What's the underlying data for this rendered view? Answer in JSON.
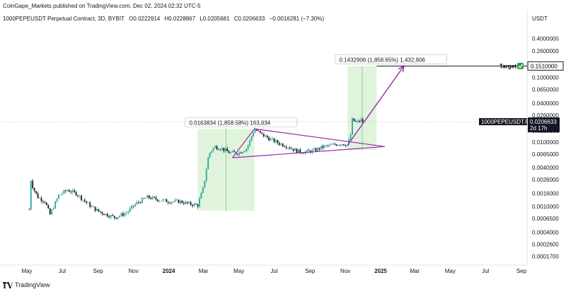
{
  "header": {
    "publisher": "CoinGape_Markets published on TradingView.com, Dec 02, 2024 02:32 UTC-5",
    "symbol": "1000PEPEUSDT Perpetual Contract, 3D, BYBIT",
    "open": "O0.0222914",
    "high": "H0.0228867",
    "low": "L0.0205681",
    "close": "C0.0206633",
    "change": "−0.0016281 (−7.30%)"
  },
  "footer": {
    "brand": "TradingView"
  },
  "chart_data": {
    "type": "candlestick",
    "y_scale": "log",
    "unit": "USDT",
    "ylim": [
      0.00014,
      0.58
    ],
    "y_ticks": [
      "0.4000000",
      "0.2600000",
      "0.1510000",
      "0.1000000",
      "0.0650000",
      "0.0400000",
      "0.0260000",
      "0.0150000",
      "0.0100000",
      "0.0065000",
      "0.0040000",
      "0.0026000",
      "0.0016000",
      "0.0010000",
      "0.0006500",
      "0.0004000",
      "0.0002600",
      "0.0001700"
    ],
    "x_ticks": [
      {
        "label": "May",
        "date": "2023-05-01"
      },
      {
        "label": "Jul",
        "date": "2023-07-01"
      },
      {
        "label": "Sep",
        "date": "2023-09-01"
      },
      {
        "label": "Nov",
        "date": "2023-11-01"
      },
      {
        "label": "2024",
        "date": "2024-01-01",
        "bold": true
      },
      {
        "label": "Mar",
        "date": "2024-03-01"
      },
      {
        "label": "May",
        "date": "2024-05-01"
      },
      {
        "label": "Jul",
        "date": "2024-07-01"
      },
      {
        "label": "Sep",
        "date": "2024-09-01"
      },
      {
        "label": "Nov",
        "date": "2024-11-01"
      },
      {
        "label": "2025",
        "date": "2025-01-01",
        "bold": true
      },
      {
        "label": "Mar",
        "date": "2025-03-01"
      },
      {
        "label": "May",
        "date": "2025-05-01"
      },
      {
        "label": "Jul",
        "date": "2025-07-01"
      },
      {
        "label": "Sep",
        "date": "2025-09-01"
      }
    ],
    "price_path": [
      [
        "2023-05-05",
        0.0009
      ],
      [
        "2023-05-07",
        0.0028
      ],
      [
        "2023-05-12",
        0.0019
      ],
      [
        "2023-05-20",
        0.0014
      ],
      [
        "2023-06-01",
        0.0012
      ],
      [
        "2023-06-10",
        0.00075
      ],
      [
        "2023-06-25",
        0.0015
      ],
      [
        "2023-07-10",
        0.0018
      ],
      [
        "2023-07-25",
        0.0016
      ],
      [
        "2023-08-05",
        0.0013
      ],
      [
        "2023-08-20",
        0.001
      ],
      [
        "2023-09-01",
        0.00085
      ],
      [
        "2023-09-15",
        0.00075
      ],
      [
        "2023-10-01",
        0.00068
      ],
      [
        "2023-10-20",
        0.0008
      ],
      [
        "2023-11-05",
        0.0011
      ],
      [
        "2023-11-25",
        0.0014
      ],
      [
        "2023-12-10",
        0.0013
      ],
      [
        "2024-01-01",
        0.0012
      ],
      [
        "2024-01-20",
        0.0012
      ],
      [
        "2024-02-05",
        0.0011
      ],
      [
        "2024-02-20",
        0.00105
      ],
      [
        "2024-03-01",
        0.002
      ],
      [
        "2024-03-10",
        0.0065
      ],
      [
        "2024-03-20",
        0.0085
      ],
      [
        "2024-04-01",
        0.008
      ],
      [
        "2024-04-15",
        0.0068
      ],
      [
        "2024-05-01",
        0.0068
      ],
      [
        "2024-05-15",
        0.008
      ],
      [
        "2024-05-28",
        0.016
      ],
      [
        "2024-06-10",
        0.013
      ],
      [
        "2024-06-25",
        0.011
      ],
      [
        "2024-07-10",
        0.0095
      ],
      [
        "2024-07-25",
        0.0085
      ],
      [
        "2024-08-10",
        0.0072
      ],
      [
        "2024-08-25",
        0.007
      ],
      [
        "2024-09-10",
        0.0075
      ],
      [
        "2024-09-25",
        0.0085
      ],
      [
        "2024-10-10",
        0.009
      ],
      [
        "2024-10-25",
        0.0095
      ],
      [
        "2024-11-05",
        0.009
      ],
      [
        "2024-11-10",
        0.013
      ],
      [
        "2024-11-13",
        0.022
      ],
      [
        "2024-11-20",
        0.02
      ],
      [
        "2024-11-28",
        0.0218
      ],
      [
        "2024-12-02",
        0.0206633
      ]
    ],
    "annotations": [
      {
        "text": "0.0163834 (1,858.58%) 163,834",
        "x0": "2024-02-20",
        "x1": "2024-05-28",
        "y0": 0.00086,
        "y1": 0.016
      },
      {
        "text": "0.1432906 (1,858.65%) 1,432,906",
        "x0": "2024-11-05",
        "x1": "2024-12-25",
        "y0": 0.0075,
        "y1": 0.151
      }
    ],
    "triangle": {
      "apex": [
        "2025-01-08",
        0.0085
      ],
      "upper_start": [
        "2024-05-28",
        0.016
      ],
      "lower_start": [
        "2024-04-20",
        0.0057
      ]
    },
    "projection": {
      "from": [
        "2024-11-05",
        0.009
      ],
      "to": [
        "2025-02-10",
        0.151
      ]
    },
    "target": {
      "label": "Target",
      "value": "0.1510000",
      "y": 0.151,
      "x_from": "2024-12-25"
    },
    "last_price": {
      "symbol": "1000PEPEUSDT.P",
      "value": "0.0206633",
      "countdown": "2d 17h",
      "y": 0.0206633
    },
    "colors": {
      "up": "#26a69a",
      "down": "#131722",
      "box": "#d5f0d0",
      "projection": "#9c27b0",
      "target_check": "#2e9e44",
      "price_tag": "#131722"
    }
  }
}
